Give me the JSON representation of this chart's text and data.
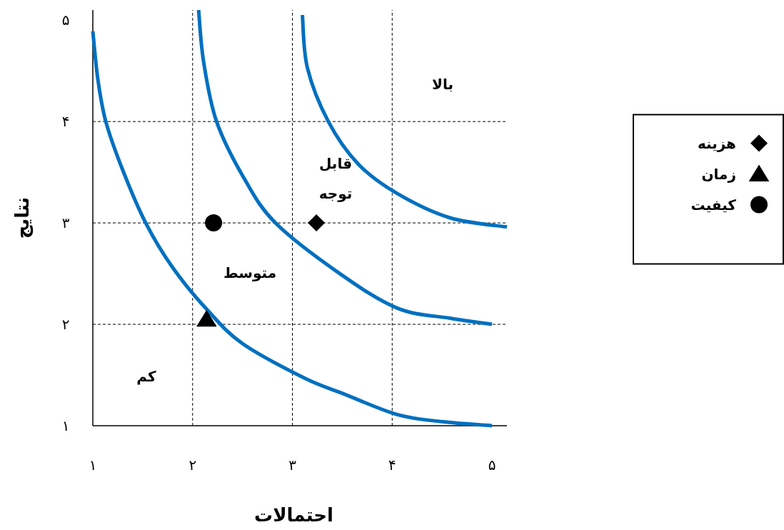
{
  "chart_data": {
    "type": "line",
    "xlabel": "احتمالات",
    "ylabel": "نتایج",
    "xlim": [
      1,
      5.15
    ],
    "ylim": [
      1,
      5.1
    ],
    "xticks": [
      {
        "value": 1,
        "label": "۱"
      },
      {
        "value": 2,
        "label": "۲"
      },
      {
        "value": 3,
        "label": "۳"
      },
      {
        "value": 4,
        "label": "۴"
      },
      {
        "value": 5,
        "label": "۵"
      }
    ],
    "yticks": [
      {
        "value": 1,
        "label": "۱"
      },
      {
        "value": 2,
        "label": "۲"
      },
      {
        "value": 3,
        "label": "۳"
      },
      {
        "value": 4,
        "label": "۴"
      },
      {
        "value": 5,
        "label": "۵"
      }
    ],
    "grid": true,
    "legend": "right",
    "series": [
      {
        "type": "line",
        "color": "#0070c0",
        "marker": "none",
        "x": [
          1,
          1.05,
          1.13,
          1.3,
          1.53,
          1.8,
          2.14,
          2.5,
          3.12,
          3.5,
          4.05,
          4.5,
          5
        ],
        "values": [
          4.89,
          4.42,
          4,
          3.52,
          3,
          2.56,
          2.15,
          1.81,
          1.47,
          1.32,
          1.11,
          1.04,
          1.0
        ]
      },
      {
        "type": "line",
        "color": "#0070c0",
        "marker": "none",
        "x": [
          2.06,
          2.11,
          2.24,
          2.51,
          2.83,
          3.46,
          4.05,
          4.58,
          5
        ],
        "values": [
          5.1,
          4.59,
          4,
          3.45,
          3,
          2.51,
          2.16,
          2.06,
          2.0
        ]
      },
      {
        "type": "line",
        "color": "#0070c0",
        "marker": "none",
        "x": [
          3.1,
          3.15,
          3.36,
          3.66,
          4.05,
          4.58,
          5.15
        ],
        "values": [
          5.05,
          4.53,
          4,
          3.58,
          3.29,
          3.05,
          2.96
        ]
      },
      {
        "type": "scatter",
        "name": "هزینه",
        "color": "#000000",
        "marker": "diamond",
        "x": [
          3.24
        ],
        "values": [
          3
        ]
      },
      {
        "type": "scatter",
        "name": "زمان",
        "color": "#000000",
        "marker": "triangle",
        "x": [
          2.14
        ],
        "values": [
          2.05
        ]
      },
      {
        "type": "scatter",
        "name": "کیفیت",
        "color": "#000000",
        "marker": "circle",
        "x": [
          2.21
        ],
        "values": [
          3
        ]
      }
    ],
    "annotations": [
      "بالا",
      "قابل توجه",
      "متوسط",
      "کم"
    ]
  }
}
